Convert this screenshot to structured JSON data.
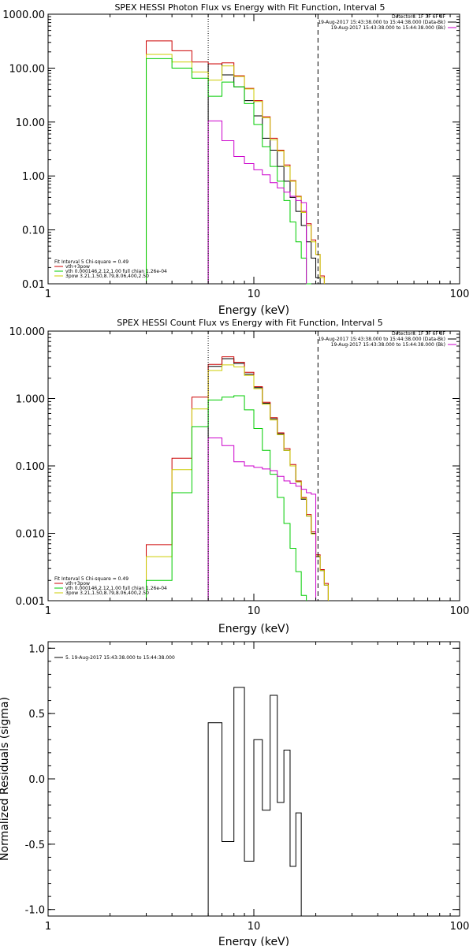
{
  "chart_data": [
    {
      "type": "line",
      "id": "photon",
      "title": "SPEX HESSI Photon Flux vs Energy with Fit Function, Interval 5",
      "xlabel": "Energy (keV)",
      "ylabel": "",
      "xscale": "log",
      "yscale": "log",
      "xlim": [
        1,
        100
      ],
      "ylim": [
        0.01,
        1000
      ],
      "x_ticks": [
        1,
        10,
        100
      ],
      "x_tick_labels": [
        "1",
        "10",
        "100"
      ],
      "y_ticks": [
        0.01,
        0.1,
        1,
        10,
        100,
        1000
      ],
      "y_tick_labels": [
        "0.01",
        "0.10",
        "1.00",
        "10.00",
        "100.00",
        "1000.00"
      ],
      "energy_edges": [
        3,
        4,
        5,
        6,
        7,
        8,
        9,
        10,
        11,
        12,
        13,
        14,
        15,
        16,
        17,
        18,
        19,
        20,
        21,
        22,
        23,
        24,
        25
      ],
      "vlines": [
        {
          "x": 6.0,
          "style": "dotted"
        },
        {
          "x": 20.5,
          "style": "dashed"
        }
      ],
      "info_lines": [
        {
          "text": "Detectors: 1F 3F 6F 8F",
          "color": ""
        },
        {
          "text": "19-Aug-2017 15:43:38.000 to 15:44:38.000 (Data-Bk)",
          "color": "#000000"
        },
        {
          "text": "19-Aug-2017 15:43:38.000 to 15:44:38.000 (Bk)",
          "color": "#cc00cc"
        }
      ],
      "legend_position": "bottom-left",
      "legend_lines": [
        {
          "text": "Fit Interval 5   Chi-square = 0.49",
          "color": ""
        },
        {
          "text": "vth+3pow",
          "color": "#cc0000"
        },
        {
          "text": "vth 0.000146,2.12,1.00  full chian 1.26e-04",
          "color": "#00cc00"
        },
        {
          "text": "3pow 3.21,1.50,8.79,8.06,400,2.50",
          "color": "#cccc00"
        }
      ],
      "series": [
        {
          "color": "#000000",
          "x_start": 6,
          "values": [
            120,
            75,
            45,
            25,
            13,
            5,
            3,
            1.5,
            0.8,
            0.4,
            0.22,
            0.12,
            0.06,
            0.03,
            0.013
          ]
        },
        {
          "color": "#cc0000",
          "x_start": 3,
          "values": [
            320,
            210,
            130,
            120,
            125,
            72,
            42,
            25,
            12.5,
            5,
            3,
            1.6,
            0.82,
            0.42,
            0.22,
            0.13,
            0.065,
            0.035,
            0.014
          ]
        },
        {
          "color": "#cccc00",
          "x_start": 3,
          "values": [
            180,
            130,
            85,
            60,
            110,
            70,
            41,
            24,
            12,
            4.7,
            2.9,
            1.5,
            0.8,
            0.41,
            0.21,
            0.12,
            0.06,
            0.035,
            0.013
          ]
        },
        {
          "color": "#00cc00",
          "x_start": 3,
          "values": [
            150,
            100,
            65,
            30,
            55,
            45,
            22,
            9,
            3.5,
            1.5,
            0.8,
            0.35,
            0.14,
            0.06,
            0.03,
            0.01
          ]
        },
        {
          "color": "#cc00cc",
          "x_start": 6,
          "values": [
            10.5,
            4.5,
            2.3,
            1.7,
            1.3,
            1.05,
            0.75,
            0.6,
            0.5,
            0.42,
            0.35,
            0.32
          ]
        }
      ]
    },
    {
      "type": "line",
      "id": "count",
      "title": "SPEX HESSI Count Flux vs Energy with Fit Function, Interval 5",
      "xlabel": "Energy (keV)",
      "ylabel": "",
      "xscale": "log",
      "yscale": "log",
      "xlim": [
        1,
        100
      ],
      "ylim": [
        0.001,
        10
      ],
      "x_ticks": [
        1,
        10,
        100
      ],
      "x_tick_labels": [
        "1",
        "10",
        "100"
      ],
      "y_ticks": [
        0.001,
        0.01,
        0.1,
        1,
        10
      ],
      "y_tick_labels": [
        "0.001",
        "0.010",
        "0.100",
        "1.000",
        "10.000"
      ],
      "energy_edges": [
        3,
        4,
        5,
        6,
        7,
        8,
        9,
        10,
        11,
        12,
        13,
        14,
        15,
        16,
        17,
        18,
        19,
        20,
        21,
        22,
        23,
        24,
        25
      ],
      "vlines": [
        {
          "x": 6.0,
          "style": "dotted"
        },
        {
          "x": 20.5,
          "style": "dashed"
        }
      ],
      "info_lines": [
        {
          "text": "Detectors: 1F 3F 6F 8F",
          "color": ""
        },
        {
          "text": "19-Aug-2017 15:43:38.000 to 15:44:38.000 (Data-Bk)",
          "color": "#000000"
        },
        {
          "text": "19-Aug-2017 15:43:38.000 to 15:44:38.000 (Bk)",
          "color": "#cc00cc"
        }
      ],
      "legend_position": "bottom-left",
      "legend_lines": [
        {
          "text": "Fit Interval 5   Chi-square = 0.49",
          "color": ""
        },
        {
          "text": "vth+3pow",
          "color": "#cc0000"
        },
        {
          "text": "vth 0.000146,2.12,1.00  full chian 1.26e-04",
          "color": "#00cc00"
        },
        {
          "text": "3pow 3.21,1.50,8.79,8.06,400,2.50",
          "color": "#cccc00"
        }
      ],
      "series": [
        {
          "color": "#000000",
          "x_start": 6,
          "values": [
            3.0,
            3.9,
            3.3,
            2.3,
            1.45,
            0.85,
            0.5,
            0.3,
            0.17,
            0.1,
            0.058,
            0.032,
            0.018,
            0.01,
            0.0045,
            0.0028,
            0.0017
          ]
        },
        {
          "color": "#cc0000",
          "x_start": 3,
          "values": [
            0.0068,
            0.13,
            1.05,
            3.2,
            4.15,
            3.45,
            2.45,
            1.5,
            0.88,
            0.52,
            0.31,
            0.18,
            0.105,
            0.06,
            0.034,
            0.019,
            0.0105,
            0.0048,
            0.0029,
            0.0018
          ]
        },
        {
          "color": "#cccc00",
          "x_start": 3,
          "values": [
            0.0045,
            0.088,
            0.7,
            2.6,
            3.15,
            2.95,
            2.2,
            1.4,
            0.82,
            0.48,
            0.29,
            0.17,
            0.1,
            0.058,
            0.033,
            0.018,
            0.0098,
            0.0046,
            0.0028,
            0.0017
          ]
        },
        {
          "color": "#00cc00",
          "x_start": 3,
          "values": [
            0.002,
            0.04,
            0.38,
            0.95,
            1.05,
            1.1,
            0.68,
            0.36,
            0.17,
            0.075,
            0.034,
            0.014,
            0.006,
            0.0027,
            0.0012
          ]
        },
        {
          "color": "#cc00cc",
          "x_start": 6,
          "values": [
            0.26,
            0.2,
            0.115,
            0.1,
            0.095,
            0.09,
            0.085,
            0.07,
            0.06,
            0.055,
            0.05,
            0.045,
            0.04,
            0.038
          ]
        }
      ]
    },
    {
      "type": "line",
      "id": "residuals",
      "title": "",
      "xlabel": "Energy (keV)",
      "ylabel": "Normalized Residuals (sigma)",
      "xscale": "log",
      "yscale": "linear",
      "xlim": [
        1,
        100
      ],
      "ylim": [
        -1.05,
        1.05
      ],
      "x_ticks": [
        1,
        10,
        100
      ],
      "x_tick_labels": [
        "1",
        "10",
        "100"
      ],
      "y_ticks": [
        -1,
        -0.5,
        0,
        0.5,
        1
      ],
      "y_tick_labels": [
        "-1.0",
        "-0.5",
        "0.0",
        "0.5",
        "1.0"
      ],
      "energy_edges": [
        6,
        7,
        8,
        9,
        10,
        11,
        12,
        13,
        14,
        15,
        16,
        17,
        18,
        19,
        20
      ],
      "legend_position": "top-left",
      "legend_lines": [
        {
          "text": "5. 19-Aug-2017 15:43:38.000 to 15:44:38.000",
          "color": "#000000"
        }
      ],
      "series": [
        {
          "color": "#000000",
          "x_start": 6,
          "values": [
            0.43,
            -0.48,
            0.7,
            -0.63,
            0.3,
            -0.24,
            0.64,
            -0.18,
            0.22,
            -0.67,
            -0.26
          ],
          "drop_to": -1.05
        }
      ]
    }
  ]
}
